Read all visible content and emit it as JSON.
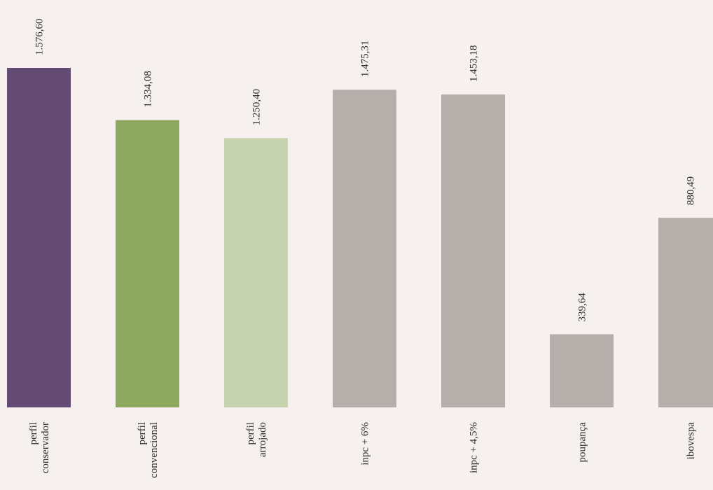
{
  "chart_data": {
    "type": "bar",
    "title": "",
    "xlabel": "",
    "ylabel": "",
    "ylim": [
      0,
      1800
    ],
    "grid": false,
    "legend": "none",
    "categories": [
      "perfil conservador",
      "perfil convencional",
      "perfil arrojado",
      "inpc + 6%",
      "inpc + 4,5%",
      "poupança",
      "ibovespa"
    ],
    "category_lines": [
      [
        "perfil",
        "conservador"
      ],
      [
        "perfil",
        "convencional"
      ],
      [
        "perfil",
        "arrojado"
      ],
      [
        "inpc + 6%"
      ],
      [
        "inpc + 4,5%"
      ],
      [
        "poupança"
      ],
      [
        "ibovespa"
      ]
    ],
    "values": [
      1576.6,
      1334.08,
      1250.4,
      1475.31,
      1453.18,
      339.64,
      880.49
    ],
    "value_labels": [
      "1.576,60",
      "1.334,08",
      "1.250,40",
      "1.475,31",
      "1.453,18",
      "339,64",
      "880,49"
    ],
    "colors": [
      "#634b73",
      "#8ea85f",
      "#c7d2ae",
      "#b6aeab",
      "#b6aeab",
      "#b6aeab",
      "#b6aeab"
    ]
  }
}
